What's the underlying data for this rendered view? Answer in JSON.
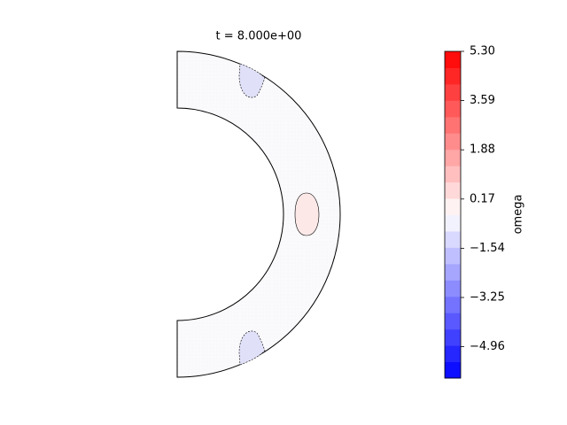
{
  "chart_data": {
    "type": "contour",
    "title": "t = 8.000e+00",
    "colorbar": {
      "label": "omega",
      "colormap": "bwr",
      "ylim": [
        -6.05,
        5.3
      ],
      "yticks": [
        {
          "value": 5.3,
          "label": "5.30"
        },
        3.59,
        1.88,
        0.17,
        {
          "value": -1.54,
          "label": "−1.54"
        },
        {
          "value": -3.25,
          "label": "−3.25"
        },
        {
          "value": -4.96,
          "label": "−4.96"
        }
      ]
    }
  }
}
